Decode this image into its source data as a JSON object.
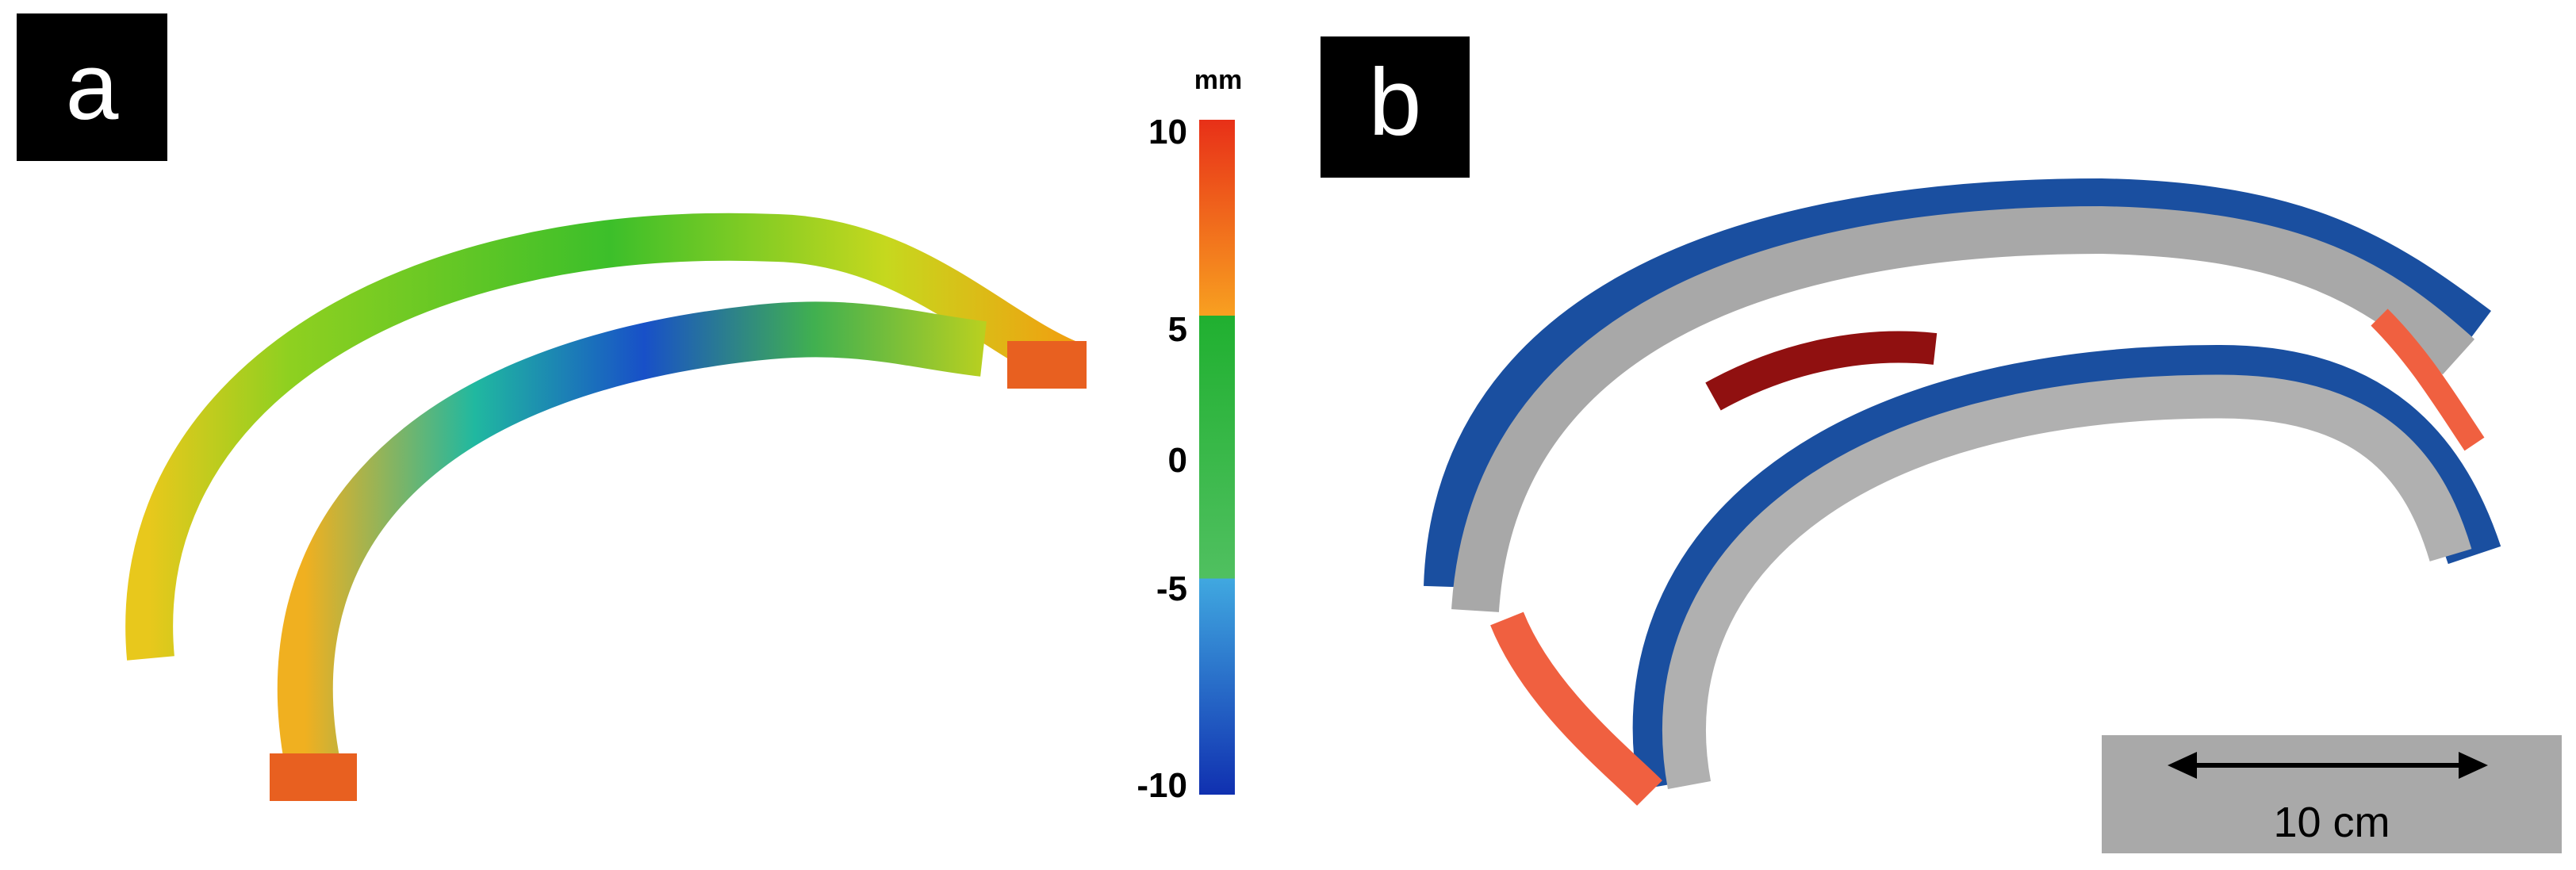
{
  "panels": [
    {
      "label": "a"
    },
    {
      "label": "b"
    }
  ],
  "colorbar": {
    "unit": "mm",
    "ticks": [
      10,
      5,
      0,
      -5,
      -10
    ]
  },
  "scale_bar": {
    "label": "10 cm"
  }
}
